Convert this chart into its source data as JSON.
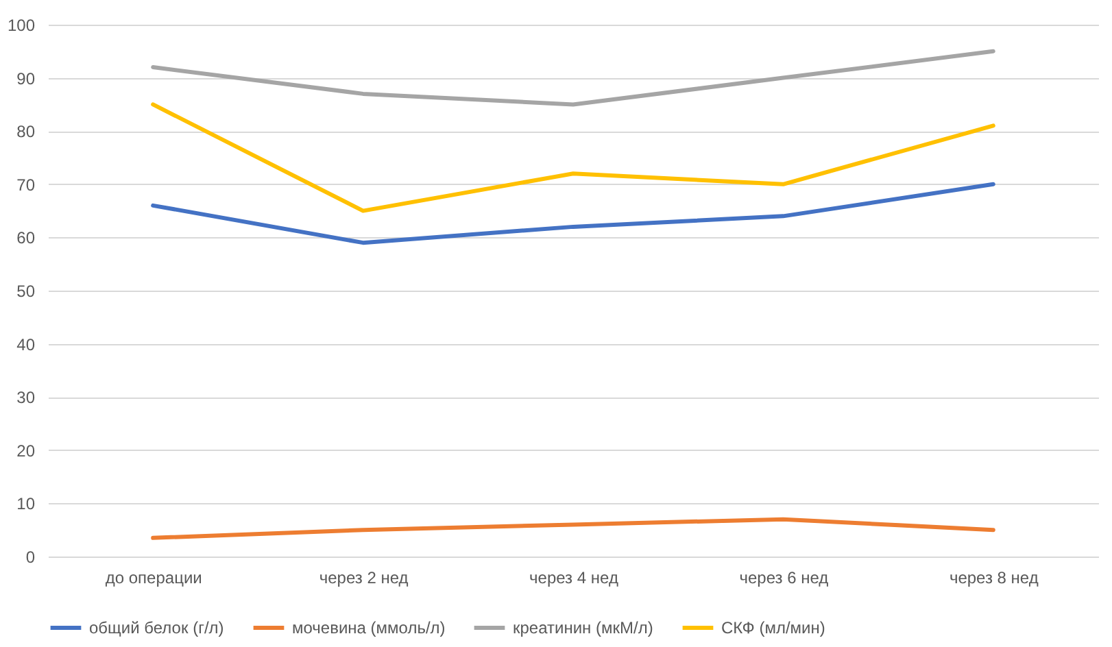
{
  "chart_data": {
    "type": "line",
    "categories": [
      "до операции",
      "через 2 нед",
      "через 4 нед",
      "через 6 нед",
      "через 8 нед"
    ],
    "series": [
      {
        "name": "общий белок (г/л)",
        "color": "#4472c4",
        "values": [
          66,
          59,
          62,
          64,
          70
        ]
      },
      {
        "name": "мочевина (ммоль/л)",
        "color": "#ed7d31",
        "values": [
          3.5,
          5,
          6,
          7,
          5
        ]
      },
      {
        "name": "креатинин (мкМ/л)",
        "color": "#a5a5a5",
        "values": [
          92,
          87,
          85,
          90,
          95
        ]
      },
      {
        "name": "СКФ (мл/мин)",
        "color": "#ffc000",
        "values": [
          85,
          65,
          72,
          70,
          81
        ]
      }
    ],
    "ylim": [
      0,
      100
    ],
    "yticks": [
      0,
      10,
      20,
      30,
      40,
      50,
      60,
      70,
      80,
      90,
      100
    ],
    "grid": "y",
    "legend": "bottom",
    "marker": "none",
    "line_style": "solid"
  }
}
